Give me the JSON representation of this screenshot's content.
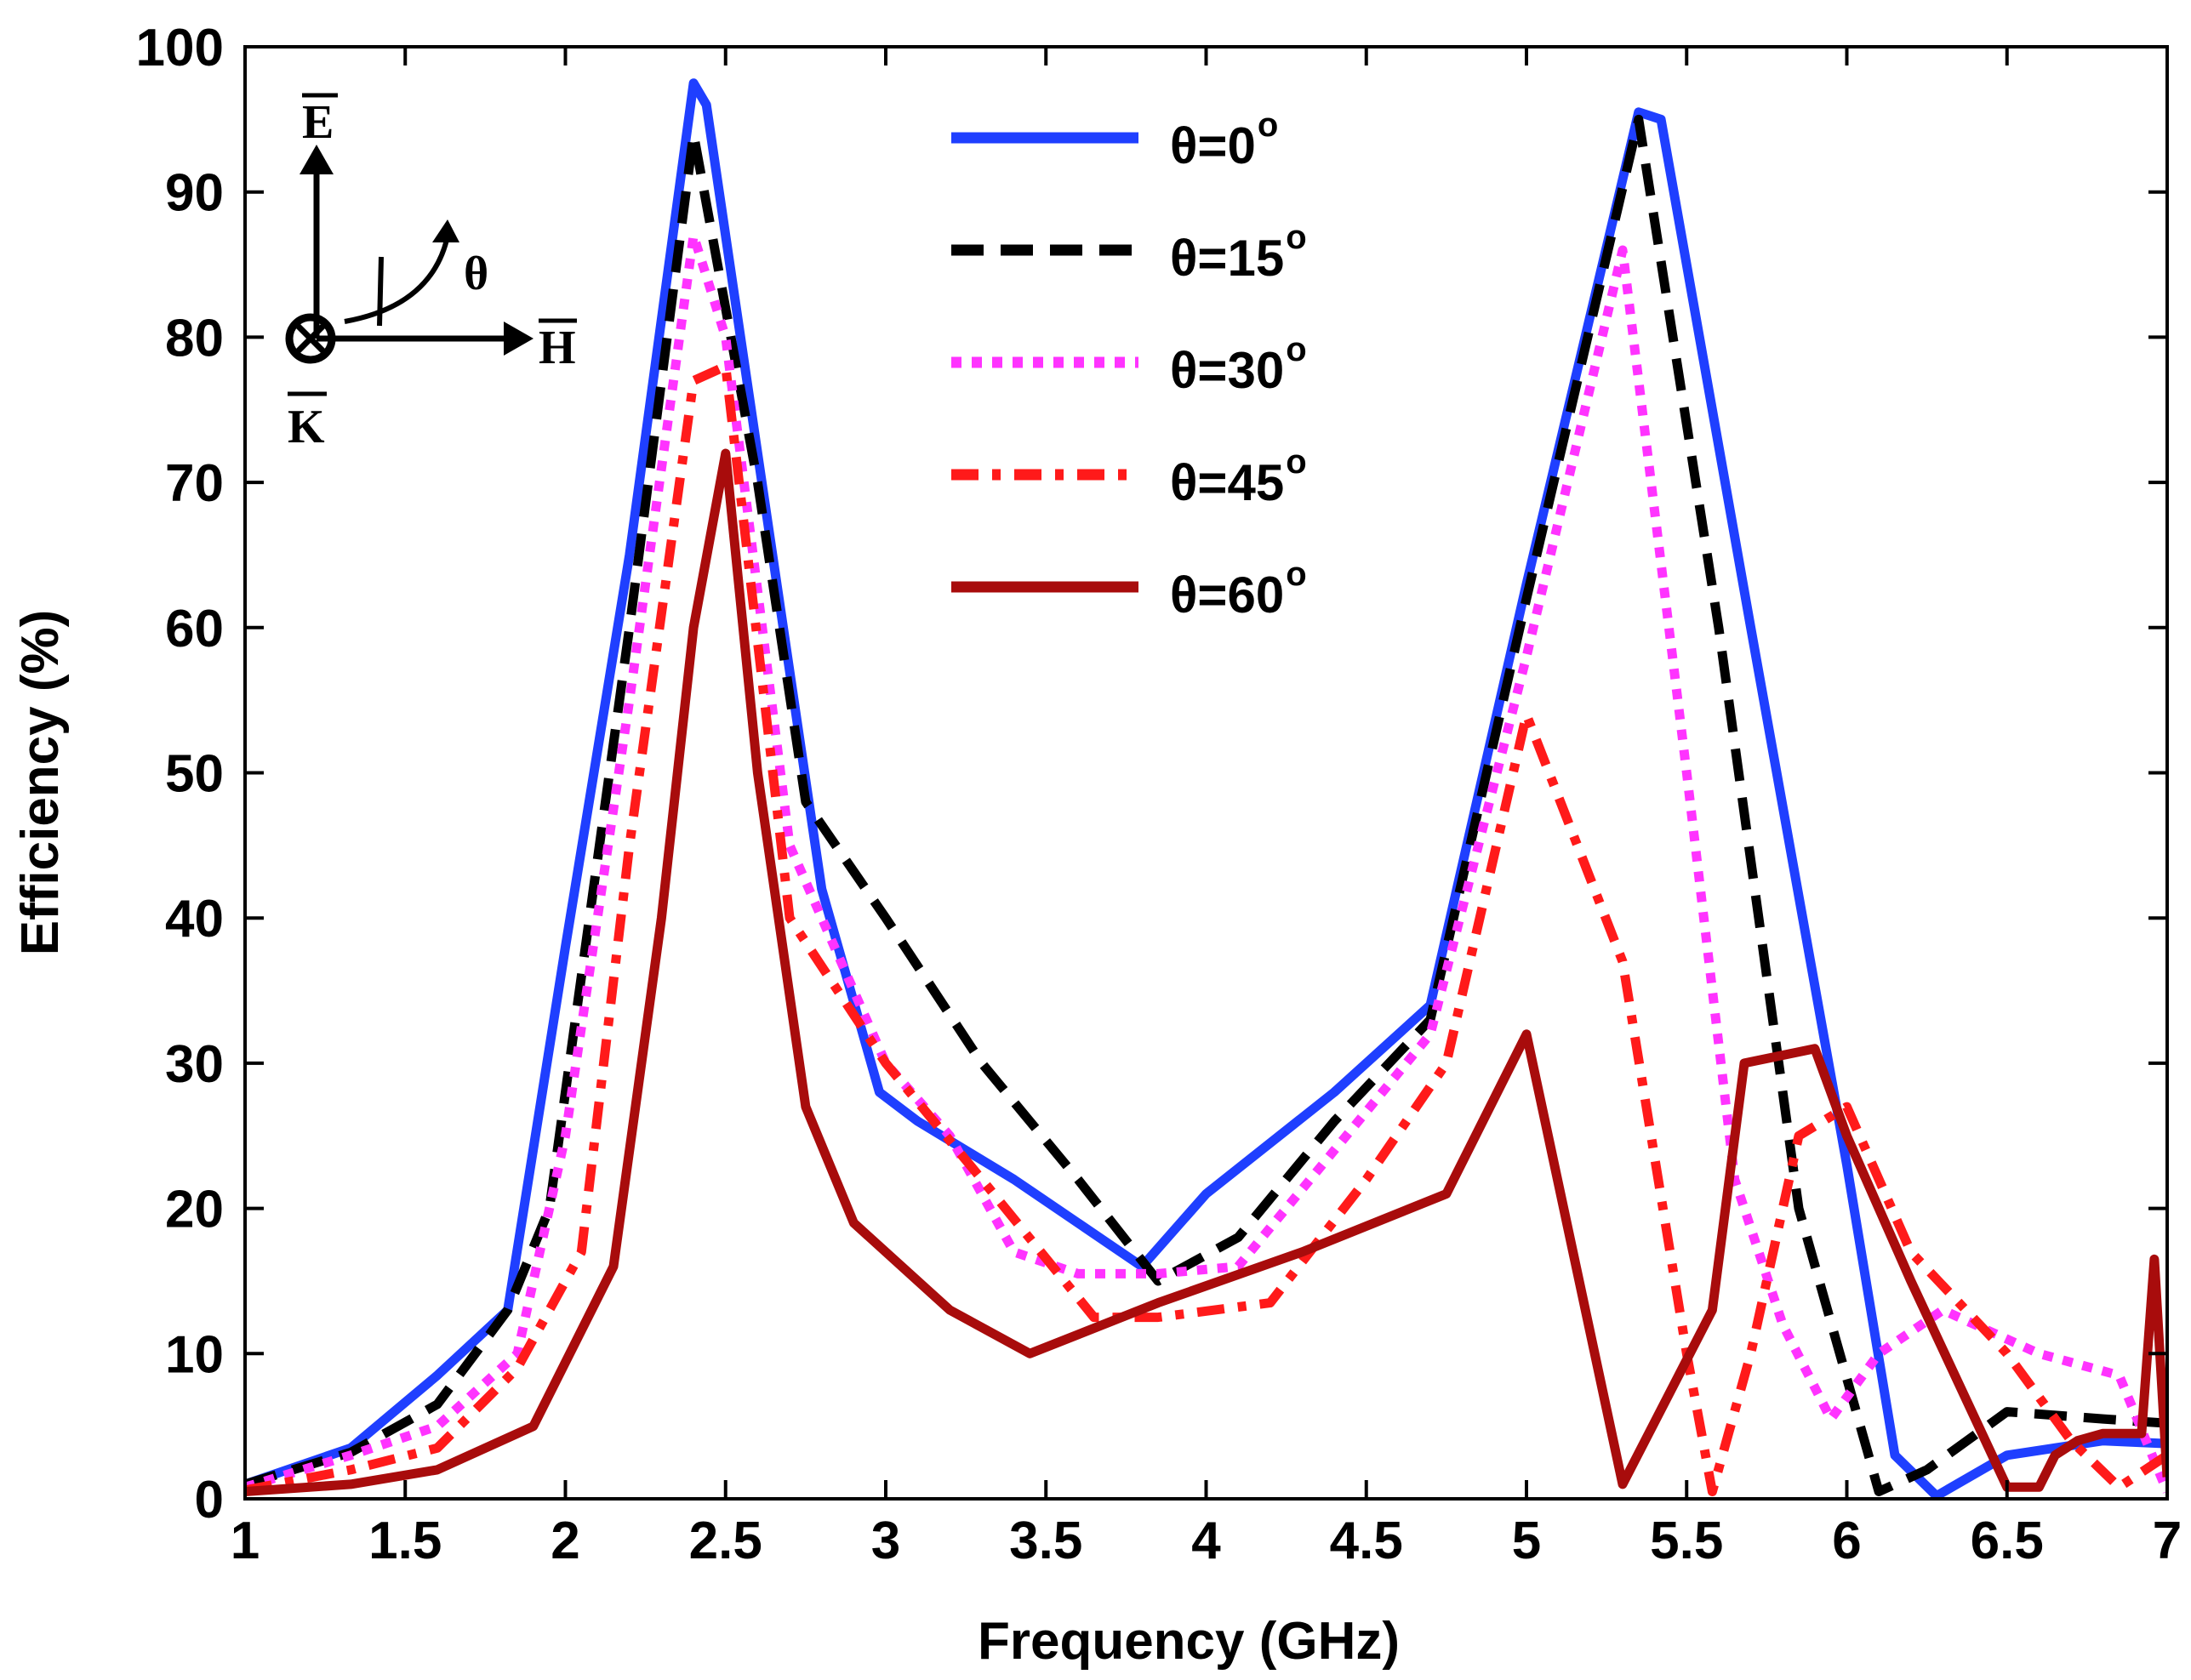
{
  "chart_data": {
    "type": "line",
    "xlabel": "Frequency (GHz)",
    "ylabel": "Efficiency (%)",
    "xlim": [
      1,
      7
    ],
    "ylim": [
      0,
      100
    ],
    "xticks": [
      "1",
      "1.5",
      "2",
      "2.5",
      "3",
      "3.5",
      "4",
      "4.5",
      "5",
      "5.5",
      "6",
      "6.5",
      "7"
    ],
    "yticks": [
      "0",
      "10",
      "20",
      "30",
      "40",
      "50",
      "60",
      "70",
      "80",
      "90",
      "100"
    ],
    "grid": false,
    "legend_position": "top-center",
    "series": [
      {
        "name": "θ=0",
        "superscript": "o",
        "color": "#1f3fff",
        "style": "solid",
        "x": [
          1,
          1.33,
          1.6,
          1.82,
          2.0,
          2.2,
          2.4,
          2.44,
          2.6,
          2.8,
          2.98,
          3.1,
          3.4,
          3.8,
          4.0,
          4.4,
          4.7,
          5.0,
          5.35,
          5.42,
          5.7,
          6.0,
          6.15,
          6.28,
          6.5,
          6.8,
          7.0
        ],
        "values": [
          1,
          3.5,
          8.5,
          13,
          38,
          65,
          97.5,
          96,
          72,
          42,
          28,
          26,
          22,
          16,
          21,
          28,
          34,
          63,
          95.5,
          95,
          60,
          23,
          3,
          0.2,
          3,
          4,
          3.8
        ]
      },
      {
        "name": "θ=15",
        "superscript": "o",
        "color": "#000000",
        "style": "dashed",
        "x": [
          1,
          1.33,
          1.6,
          1.82,
          1.95,
          2.2,
          2.4,
          2.6,
          2.75,
          3.0,
          3.3,
          3.6,
          3.85,
          4.1,
          4.4,
          4.7,
          5.0,
          5.35,
          5.6,
          5.85,
          6.1,
          6.25,
          6.5,
          6.8,
          7.0
        ],
        "values": [
          1,
          3.2,
          6.5,
          13,
          20,
          60,
          94,
          70,
          48,
          40,
          30,
          22,
          15,
          18,
          26,
          33,
          62,
          95,
          60,
          20,
          0.5,
          2,
          6,
          5.5,
          5.2
        ]
      },
      {
        "name": "θ=30",
        "superscript": "o",
        "color": "#ff33ff",
        "style": "dotted",
        "x": [
          1,
          1.33,
          1.6,
          1.85,
          2.0,
          2.2,
          2.4,
          2.5,
          2.7,
          3.0,
          3.2,
          3.4,
          3.6,
          3.85,
          4.1,
          4.4,
          4.7,
          5.0,
          5.3,
          5.5,
          5.65,
          5.8,
          5.95,
          6.1,
          6.3,
          6.6,
          6.85,
          7.0
        ],
        "values": [
          0.8,
          3,
          5,
          10,
          25,
          55,
          87,
          80,
          45,
          30,
          25,
          17,
          15.5,
          15.5,
          16,
          24,
          32,
          58,
          86,
          50,
          22,
          12,
          5.5,
          10,
          13,
          10,
          8.5,
          0.5
        ]
      },
      {
        "name": "θ=45",
        "superscript": "o",
        "color": "#ff1a1a",
        "style": "dashdot",
        "x": [
          1,
          1.33,
          1.6,
          1.85,
          2.05,
          2.2,
          2.4,
          2.5,
          2.7,
          3.0,
          3.3,
          3.65,
          3.85,
          4.2,
          4.5,
          4.75,
          5.0,
          5.3,
          5.5,
          5.58,
          5.7,
          5.85,
          6.0,
          6.2,
          6.5,
          6.7,
          6.85,
          7.0
        ],
        "values": [
          0.6,
          2,
          3.5,
          9,
          17,
          45,
          77,
          78,
          40,
          30,
          22,
          12.5,
          12.5,
          13.5,
          22,
          30,
          54,
          37,
          10,
          0.5,
          10,
          25,
          27,
          17,
          10,
          4,
          0.8,
          3
        ]
      },
      {
        "name": "θ=60",
        "superscript": "o",
        "color": "#a80c0c",
        "style": "solid",
        "x": [
          1,
          1.33,
          1.6,
          1.9,
          2.15,
          2.3,
          2.4,
          2.5,
          2.6,
          2.75,
          2.9,
          3.2,
          3.45,
          3.85,
          4.3,
          4.75,
          5.0,
          5.3,
          5.58,
          5.68,
          5.9,
          6.0,
          6.2,
          6.5,
          6.6,
          6.65,
          6.72,
          6.8,
          6.92,
          6.96,
          7.0
        ],
        "values": [
          0.5,
          1,
          2,
          5,
          16,
          40,
          60,
          72,
          50,
          27,
          19,
          13,
          10,
          13.5,
          17,
          21,
          32,
          1,
          13,
          30,
          31,
          25,
          15,
          0.8,
          0.8,
          3,
          4,
          4.5,
          4.5,
          16.5,
          1.5
        ]
      }
    ]
  },
  "inset": {
    "e_label": "E",
    "h_label": "H",
    "k_label": "K",
    "theta_label": "θ"
  }
}
